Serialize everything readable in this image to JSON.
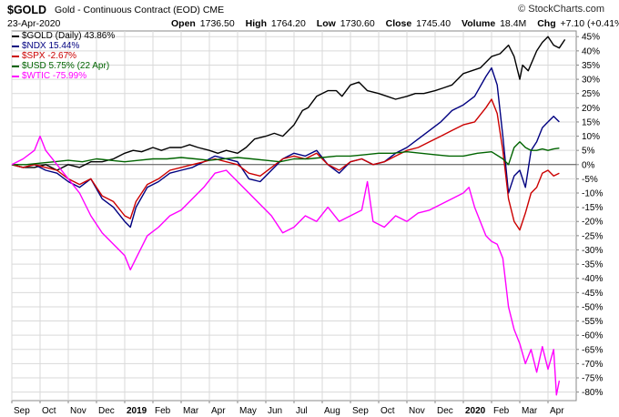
{
  "header": {
    "symbol": "$GOLD",
    "description": "Gold - Continuous Contract (EOD)",
    "exchange": "CME",
    "date": "23-Apr-2020",
    "open_label": "Open",
    "open": "1736.50",
    "high_label": "High",
    "high": "1764.20",
    "low_label": "Low",
    "low": "1730.60",
    "close_label": "Close",
    "close": "1745.40",
    "volume_label": "Volume",
    "volume": "18.4M",
    "chg_label": "Chg",
    "chg": "+7.10 (+0.41%)",
    "up_arrow_icon": "up-arrow-icon"
  },
  "brand": "© StockCharts.com",
  "chart_data": {
    "type": "line",
    "x_tick_labels": [
      "Sep",
      "Oct",
      "Nov",
      "Dec",
      "2019",
      "Feb",
      "Mar",
      "Apr",
      "May",
      "Jun",
      "Jul",
      "Aug",
      "Sep",
      "Oct",
      "Nov",
      "Dec",
      "2020",
      "Feb",
      "Mar",
      "Apr"
    ],
    "bold_tick_labels": [
      "2019",
      "2020"
    ],
    "y_ticks": [
      45,
      40,
      35,
      30,
      25,
      20,
      15,
      10,
      5,
      0,
      -5,
      -10,
      -15,
      -20,
      -25,
      -30,
      -35,
      -40,
      -45,
      -50,
      -55,
      -60,
      -65,
      -70,
      -75,
      -80
    ],
    "y_unit": "%",
    "ylim": [
      -83,
      47
    ],
    "x_range": [
      0,
      20
    ],
    "grid": true,
    "legend_position": "top-left",
    "series": [
      {
        "name": "$GOLD (Daily) 43.86%",
        "color": "#000000",
        "points": [
          [
            0,
            0
          ],
          [
            0.4,
            -1
          ],
          [
            0.8,
            -1
          ],
          [
            1.2,
            0
          ],
          [
            1.6,
            -2
          ],
          [
            2.0,
            0
          ],
          [
            2.4,
            -1
          ],
          [
            2.8,
            1
          ],
          [
            3.2,
            1
          ],
          [
            3.6,
            2
          ],
          [
            3.8,
            3
          ],
          [
            4.0,
            4
          ],
          [
            4.3,
            5
          ],
          [
            4.6,
            4.5
          ],
          [
            5.0,
            6
          ],
          [
            5.3,
            5
          ],
          [
            5.6,
            6
          ],
          [
            6.0,
            6
          ],
          [
            6.3,
            7
          ],
          [
            6.6,
            6
          ],
          [
            7.0,
            5
          ],
          [
            7.3,
            4
          ],
          [
            7.6,
            5
          ],
          [
            8.0,
            4
          ],
          [
            8.3,
            6
          ],
          [
            8.6,
            9
          ],
          [
            9.0,
            10
          ],
          [
            9.3,
            11
          ],
          [
            9.6,
            10
          ],
          [
            10.0,
            14
          ],
          [
            10.3,
            19
          ],
          [
            10.5,
            20
          ],
          [
            10.8,
            24
          ],
          [
            11.2,
            26
          ],
          [
            11.5,
            26
          ],
          [
            11.7,
            24
          ],
          [
            12.0,
            28
          ],
          [
            12.3,
            29
          ],
          [
            12.6,
            26
          ],
          [
            13.0,
            25
          ],
          [
            13.3,
            24
          ],
          [
            13.6,
            23
          ],
          [
            14.0,
            24
          ],
          [
            14.3,
            25
          ],
          [
            14.6,
            25
          ],
          [
            15.0,
            26
          ],
          [
            15.3,
            27
          ],
          [
            15.6,
            28
          ],
          [
            16.0,
            32
          ],
          [
            16.3,
            33
          ],
          [
            16.6,
            34
          ],
          [
            17.0,
            38
          ],
          [
            17.3,
            39
          ],
          [
            17.6,
            42
          ],
          [
            17.8,
            38
          ],
          [
            18.0,
            30
          ],
          [
            18.1,
            35
          ],
          [
            18.3,
            33
          ],
          [
            18.6,
            40
          ],
          [
            18.8,
            43
          ],
          [
            19.0,
            45
          ],
          [
            19.2,
            42
          ],
          [
            19.4,
            41
          ],
          [
            19.6,
            44
          ]
        ]
      },
      {
        "name": "$NDX 15.44%",
        "color": "#000080",
        "points": [
          [
            0,
            0
          ],
          [
            0.4,
            -1
          ],
          [
            0.8,
            0
          ],
          [
            1.2,
            -2
          ],
          [
            1.6,
            -3
          ],
          [
            2.0,
            -6
          ],
          [
            2.4,
            -8
          ],
          [
            2.8,
            -5
          ],
          [
            3.2,
            -12
          ],
          [
            3.6,
            -15
          ],
          [
            4.0,
            -20
          ],
          [
            4.2,
            -22
          ],
          [
            4.4,
            -15
          ],
          [
            4.8,
            -8
          ],
          [
            5.2,
            -6
          ],
          [
            5.6,
            -3
          ],
          [
            6.0,
            -2
          ],
          [
            6.4,
            -1
          ],
          [
            6.8,
            1
          ],
          [
            7.2,
            3
          ],
          [
            7.6,
            2
          ],
          [
            8.0,
            1
          ],
          [
            8.4,
            -5
          ],
          [
            8.8,
            -6
          ],
          [
            9.2,
            -2
          ],
          [
            9.6,
            2
          ],
          [
            10.0,
            4
          ],
          [
            10.4,
            3
          ],
          [
            10.8,
            5
          ],
          [
            11.2,
            0
          ],
          [
            11.6,
            -3
          ],
          [
            12.0,
            1
          ],
          [
            12.4,
            2
          ],
          [
            12.8,
            0
          ],
          [
            13.2,
            1
          ],
          [
            13.6,
            4
          ],
          [
            14.0,
            6
          ],
          [
            14.4,
            9
          ],
          [
            14.8,
            12
          ],
          [
            15.2,
            15
          ],
          [
            15.6,
            19
          ],
          [
            16.0,
            21
          ],
          [
            16.4,
            24
          ],
          [
            16.8,
            31
          ],
          [
            17.0,
            34
          ],
          [
            17.2,
            28
          ],
          [
            17.4,
            10
          ],
          [
            17.6,
            -10
          ],
          [
            17.8,
            -4
          ],
          [
            18.0,
            -2
          ],
          [
            18.2,
            -8
          ],
          [
            18.4,
            5
          ],
          [
            18.6,
            8
          ],
          [
            18.8,
            13
          ],
          [
            19.0,
            15
          ],
          [
            19.2,
            17
          ],
          [
            19.4,
            15
          ]
        ]
      },
      {
        "name": "$SPX -2.67%",
        "color": "#cc0000",
        "points": [
          [
            0,
            0
          ],
          [
            0.4,
            -1
          ],
          [
            0.8,
            0
          ],
          [
            1.2,
            -1
          ],
          [
            1.6,
            -2
          ],
          [
            2.0,
            -5
          ],
          [
            2.4,
            -7
          ],
          [
            2.8,
            -5
          ],
          [
            3.2,
            -11
          ],
          [
            3.6,
            -13
          ],
          [
            4.0,
            -18
          ],
          [
            4.2,
            -19
          ],
          [
            4.4,
            -13
          ],
          [
            4.8,
            -7
          ],
          [
            5.2,
            -5
          ],
          [
            5.6,
            -2
          ],
          [
            6.0,
            -1
          ],
          [
            6.4,
            0
          ],
          [
            6.8,
            1
          ],
          [
            7.2,
            2
          ],
          [
            7.6,
            1
          ],
          [
            8.0,
            0
          ],
          [
            8.4,
            -3
          ],
          [
            8.8,
            -4
          ],
          [
            9.2,
            -1
          ],
          [
            9.6,
            2
          ],
          [
            10.0,
            3
          ],
          [
            10.4,
            2
          ],
          [
            10.8,
            4
          ],
          [
            11.2,
            0
          ],
          [
            11.6,
            -2
          ],
          [
            12.0,
            1
          ],
          [
            12.4,
            2
          ],
          [
            12.8,
            0
          ],
          [
            13.2,
            1
          ],
          [
            13.6,
            3
          ],
          [
            14.0,
            5
          ],
          [
            14.4,
            6
          ],
          [
            14.8,
            8
          ],
          [
            15.2,
            10
          ],
          [
            15.6,
            12
          ],
          [
            16.0,
            14
          ],
          [
            16.4,
            15
          ],
          [
            16.8,
            20
          ],
          [
            17.0,
            23
          ],
          [
            17.2,
            18
          ],
          [
            17.4,
            5
          ],
          [
            17.6,
            -12
          ],
          [
            17.8,
            -20
          ],
          [
            18.0,
            -23
          ],
          [
            18.2,
            -17
          ],
          [
            18.4,
            -10
          ],
          [
            18.6,
            -8
          ],
          [
            18.8,
            -3
          ],
          [
            19.0,
            -2
          ],
          [
            19.2,
            -4
          ],
          [
            19.4,
            -3
          ]
        ]
      },
      {
        "name": "$USD 5.75% (22 Apr)",
        "color": "#006400",
        "points": [
          [
            0,
            0
          ],
          [
            0.5,
            0
          ],
          [
            1,
            0.5
          ],
          [
            1.5,
            1
          ],
          [
            2,
            1.5
          ],
          [
            2.5,
            1
          ],
          [
            3,
            2
          ],
          [
            3.5,
            1.5
          ],
          [
            4,
            1
          ],
          [
            4.5,
            1.5
          ],
          [
            5,
            2
          ],
          [
            5.5,
            2
          ],
          [
            6,
            2.5
          ],
          [
            6.5,
            2
          ],
          [
            7,
            1.5
          ],
          [
            7.5,
            2
          ],
          [
            8,
            2.5
          ],
          [
            8.5,
            2
          ],
          [
            9,
            1.5
          ],
          [
            9.5,
            1
          ],
          [
            10,
            2
          ],
          [
            10.5,
            2
          ],
          [
            11,
            2.5
          ],
          [
            11.5,
            3
          ],
          [
            12,
            3
          ],
          [
            12.5,
            3.5
          ],
          [
            13,
            4
          ],
          [
            13.5,
            4
          ],
          [
            14,
            4.5
          ],
          [
            14.5,
            4
          ],
          [
            15,
            3.5
          ],
          [
            15.5,
            3
          ],
          [
            16,
            3
          ],
          [
            16.5,
            4
          ],
          [
            17,
            4.5
          ],
          [
            17.4,
            2
          ],
          [
            17.6,
            0
          ],
          [
            17.8,
            6
          ],
          [
            18.0,
            8
          ],
          [
            18.2,
            6
          ],
          [
            18.4,
            5
          ],
          [
            18.6,
            5
          ],
          [
            18.8,
            5.5
          ],
          [
            19.0,
            5
          ],
          [
            19.2,
            5.5
          ],
          [
            19.4,
            5.8
          ]
        ]
      },
      {
        "name": "$WTIC -75.99%",
        "color": "#ff00ff",
        "points": [
          [
            0,
            0
          ],
          [
            0.4,
            2
          ],
          [
            0.8,
            5
          ],
          [
            1.0,
            10
          ],
          [
            1.2,
            5
          ],
          [
            1.6,
            0
          ],
          [
            2.0,
            -5
          ],
          [
            2.4,
            -10
          ],
          [
            2.8,
            -18
          ],
          [
            3.2,
            -24
          ],
          [
            3.6,
            -28
          ],
          [
            4.0,
            -32
          ],
          [
            4.2,
            -37
          ],
          [
            4.4,
            -33
          ],
          [
            4.8,
            -25
          ],
          [
            5.2,
            -22
          ],
          [
            5.6,
            -18
          ],
          [
            6.0,
            -16
          ],
          [
            6.4,
            -12
          ],
          [
            6.8,
            -8
          ],
          [
            7.2,
            -3
          ],
          [
            7.6,
            -2
          ],
          [
            8.0,
            -6
          ],
          [
            8.4,
            -10
          ],
          [
            8.8,
            -14
          ],
          [
            9.2,
            -18
          ],
          [
            9.6,
            -24
          ],
          [
            10.0,
            -22
          ],
          [
            10.4,
            -18
          ],
          [
            10.8,
            -20
          ],
          [
            11.2,
            -15
          ],
          [
            11.6,
            -20
          ],
          [
            12.0,
            -18
          ],
          [
            12.4,
            -16
          ],
          [
            12.6,
            -6
          ],
          [
            12.8,
            -20
          ],
          [
            13.2,
            -22
          ],
          [
            13.6,
            -18
          ],
          [
            14.0,
            -20
          ],
          [
            14.4,
            -17
          ],
          [
            14.8,
            -16
          ],
          [
            15.2,
            -14
          ],
          [
            15.6,
            -12
          ],
          [
            16.0,
            -10
          ],
          [
            16.2,
            -8
          ],
          [
            16.4,
            -15
          ],
          [
            16.8,
            -25
          ],
          [
            17.0,
            -27
          ],
          [
            17.2,
            -28
          ],
          [
            17.4,
            -33
          ],
          [
            17.6,
            -50
          ],
          [
            17.8,
            -58
          ],
          [
            18.0,
            -63
          ],
          [
            18.2,
            -70
          ],
          [
            18.4,
            -65
          ],
          [
            18.6,
            -73
          ],
          [
            18.8,
            -64
          ],
          [
            19.0,
            -72
          ],
          [
            19.2,
            -65
          ],
          [
            19.3,
            -81
          ],
          [
            19.4,
            -76
          ]
        ]
      }
    ]
  }
}
